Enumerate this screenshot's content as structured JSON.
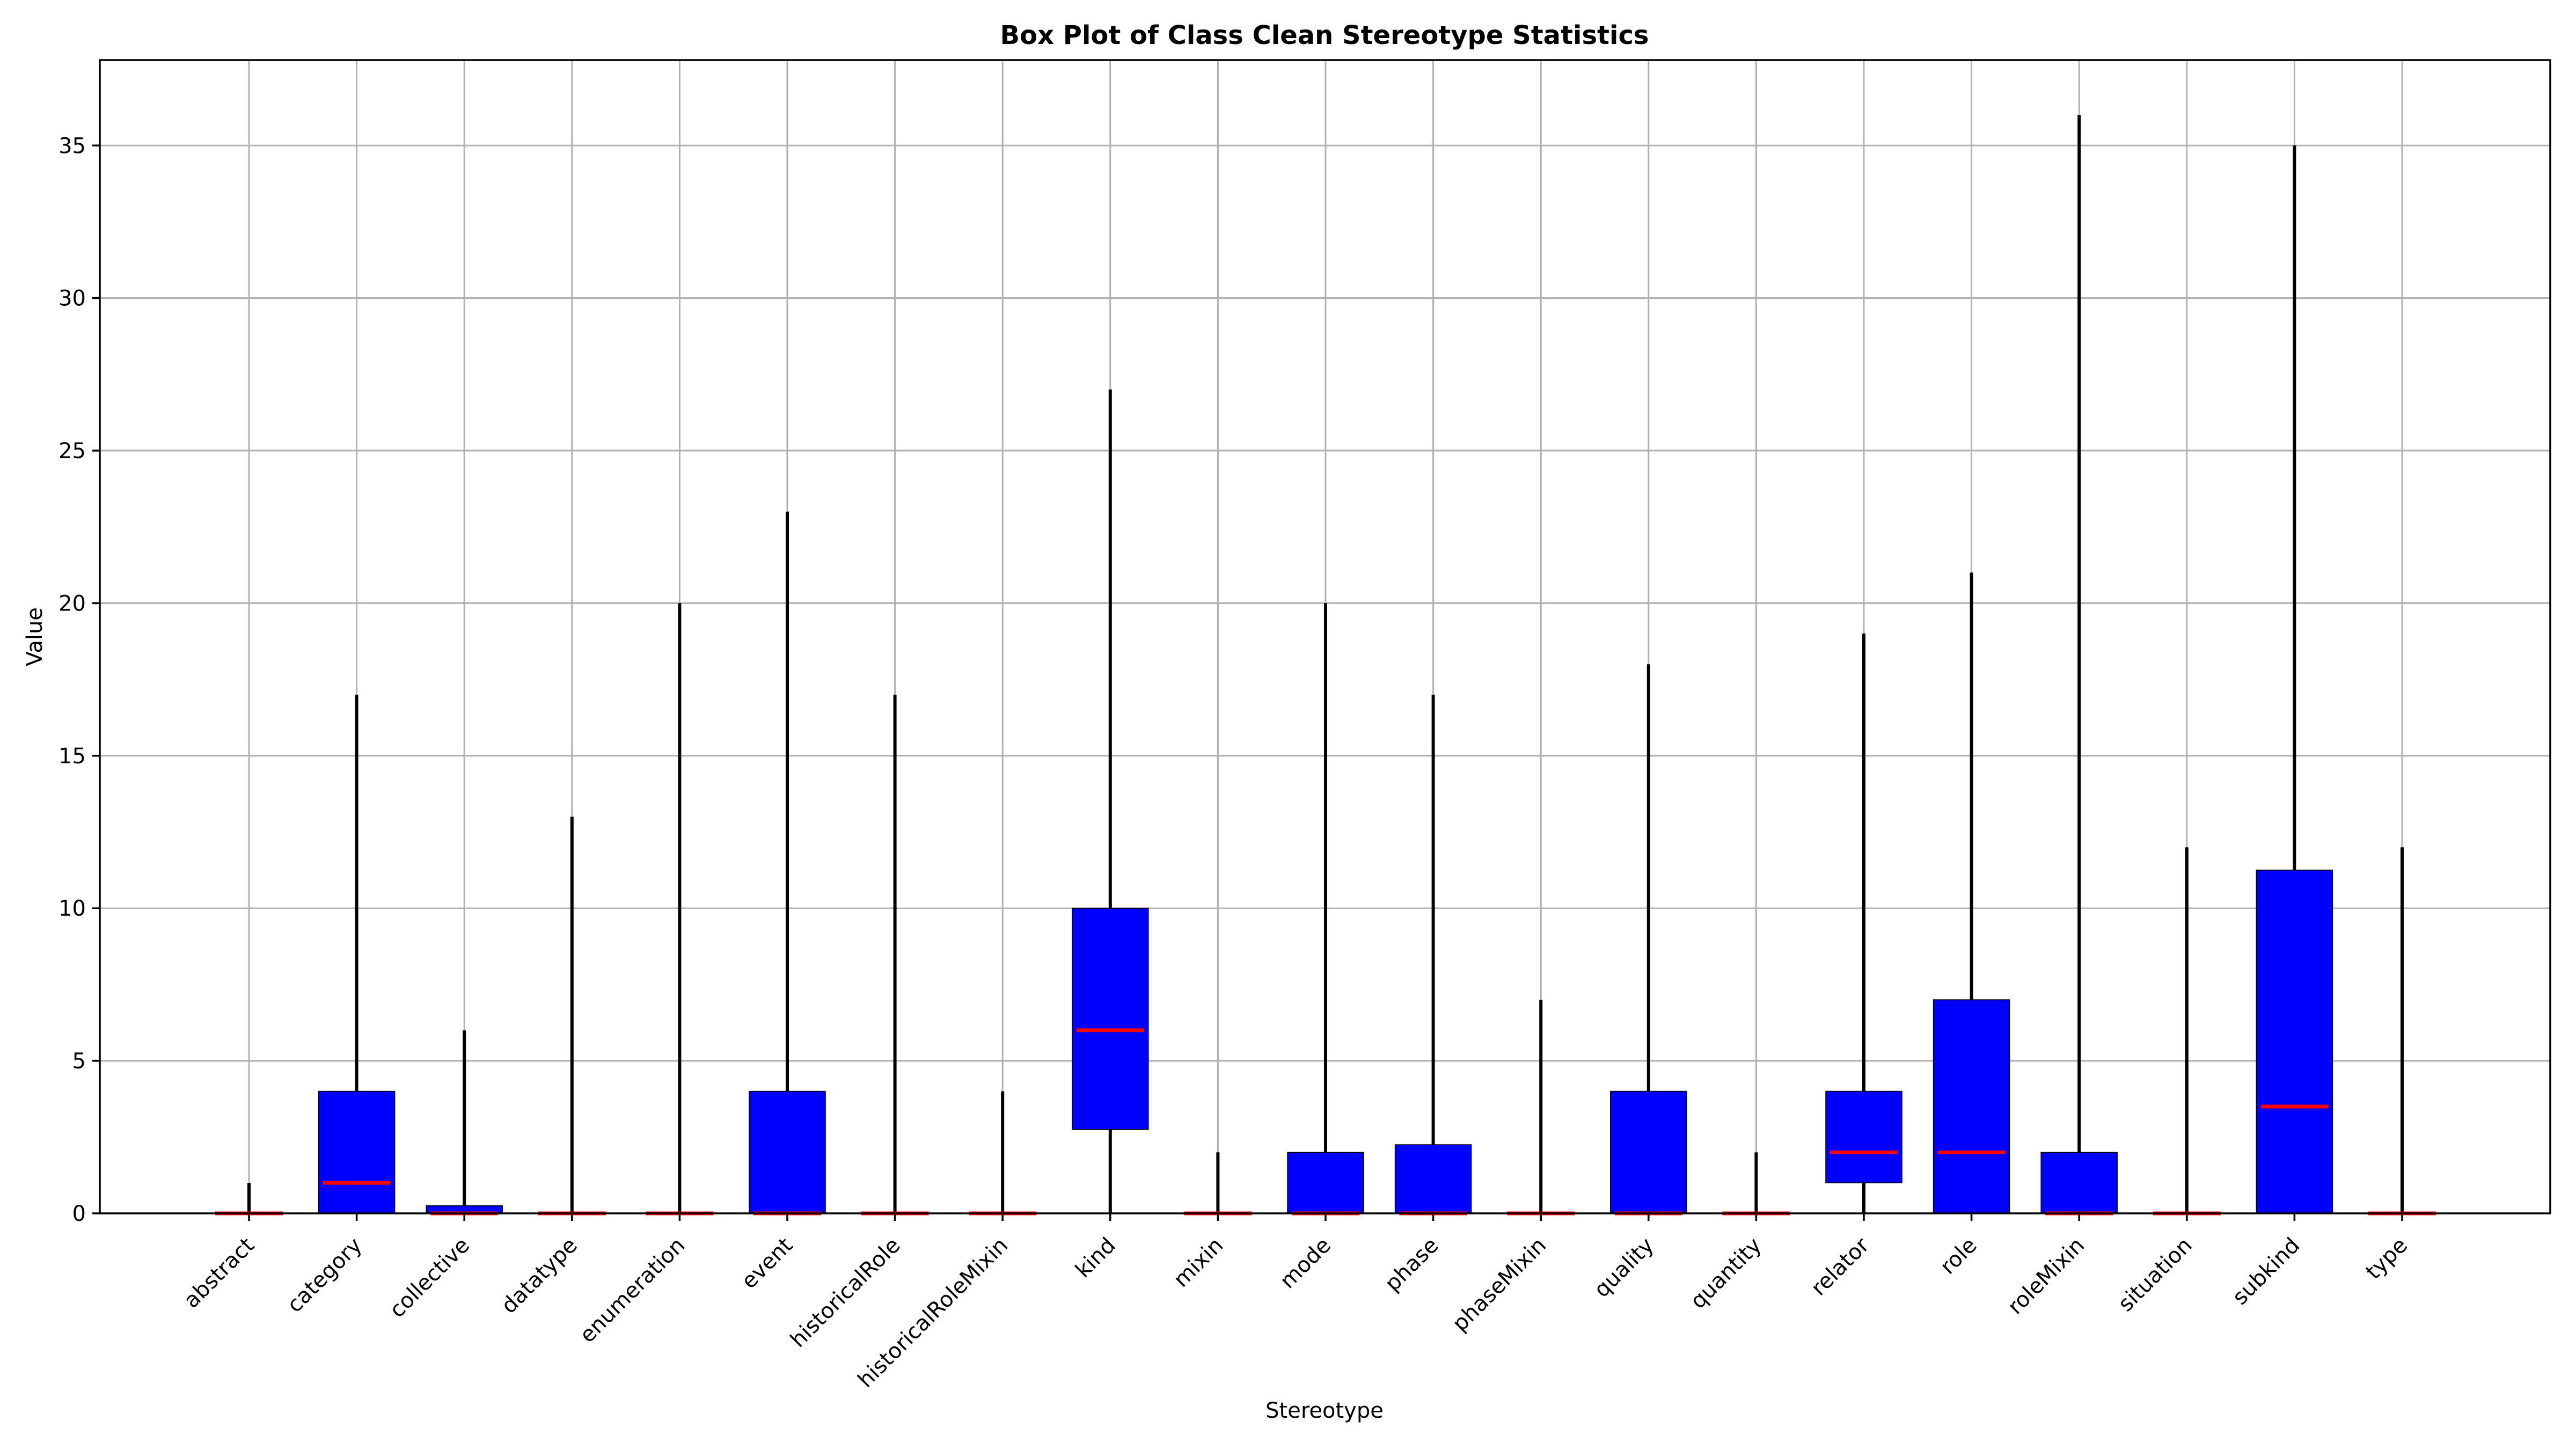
{
  "chart_data": {
    "type": "box",
    "title": "Box Plot of Class Clean Stereotype Statistics",
    "xlabel": "Stereotype",
    "ylabel": "Value",
    "ylim": [
      0,
      37.8
    ],
    "yticks": [
      0,
      5,
      10,
      15,
      20,
      25,
      30,
      35
    ],
    "grid": true,
    "box_color": "#0000ff",
    "median_color": "#ff0000",
    "whisker_color": "#000000",
    "categories": [
      "abstract",
      "category",
      "collective",
      "datatype",
      "enumeration",
      "event",
      "historicalRole",
      "historicalRoleMixin",
      "kind",
      "mixin",
      "mode",
      "phase",
      "phaseMixin",
      "quality",
      "quantity",
      "relator",
      "role",
      "roleMixin",
      "situation",
      "subkind",
      "type"
    ],
    "boxes": [
      {
        "name": "abstract",
        "min": 0,
        "q1": 0,
        "median": 0,
        "q3": 0,
        "max": 1
      },
      {
        "name": "category",
        "min": 0,
        "q1": 0,
        "median": 1,
        "q3": 4,
        "max": 17
      },
      {
        "name": "collective",
        "min": 0,
        "q1": 0,
        "median": 0,
        "q3": 0.25,
        "max": 6
      },
      {
        "name": "datatype",
        "min": 0,
        "q1": 0,
        "median": 0,
        "q3": 0,
        "max": 13
      },
      {
        "name": "enumeration",
        "min": 0,
        "q1": 0,
        "median": 0,
        "q3": 0,
        "max": 20
      },
      {
        "name": "event",
        "min": 0,
        "q1": 0,
        "median": 0,
        "q3": 4,
        "max": 23
      },
      {
        "name": "historicalRole",
        "min": 0,
        "q1": 0,
        "median": 0,
        "q3": 0,
        "max": 17
      },
      {
        "name": "historicalRoleMixin",
        "min": 0,
        "q1": 0,
        "median": 0,
        "q3": 0,
        "max": 4
      },
      {
        "name": "kind",
        "min": 0,
        "q1": 2.75,
        "median": 6,
        "q3": 10,
        "max": 27
      },
      {
        "name": "mixin",
        "min": 0,
        "q1": 0,
        "median": 0,
        "q3": 0,
        "max": 2
      },
      {
        "name": "mode",
        "min": 0,
        "q1": 0,
        "median": 0,
        "q3": 2,
        "max": 20
      },
      {
        "name": "phase",
        "min": 0,
        "q1": 0,
        "median": 0,
        "q3": 2.25,
        "max": 17
      },
      {
        "name": "phaseMixin",
        "min": 0,
        "q1": 0,
        "median": 0,
        "q3": 0,
        "max": 7
      },
      {
        "name": "quality",
        "min": 0,
        "q1": 0,
        "median": 0,
        "q3": 4,
        "max": 18
      },
      {
        "name": "quantity",
        "min": 0,
        "q1": 0,
        "median": 0,
        "q3": 0,
        "max": 2
      },
      {
        "name": "relator",
        "min": 0,
        "q1": 1,
        "median": 2,
        "q3": 4,
        "max": 19
      },
      {
        "name": "role",
        "min": 0,
        "q1": 0,
        "median": 2,
        "q3": 7,
        "max": 21
      },
      {
        "name": "roleMixin",
        "min": 0,
        "q1": 0,
        "median": 0,
        "q3": 2,
        "max": 36
      },
      {
        "name": "situation",
        "min": 0,
        "q1": 0,
        "median": 0,
        "q3": 0,
        "max": 12
      },
      {
        "name": "subkind",
        "min": 0,
        "q1": 0,
        "median": 3.5,
        "q3": 11.25,
        "max": 35
      },
      {
        "name": "type",
        "min": 0,
        "q1": 0,
        "median": 0,
        "q3": 0,
        "max": 12
      }
    ]
  }
}
